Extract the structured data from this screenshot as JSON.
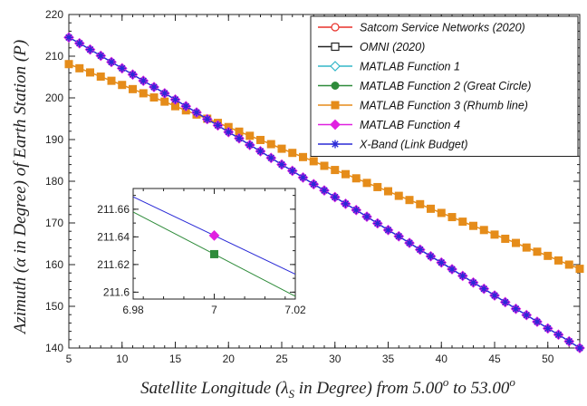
{
  "chart_data": {
    "type": "line",
    "xlabel_parts": [
      "Satellite Longitude (",
      "λ",
      "S",
      " in Degree) from 5.00",
      "o",
      " to 53.00",
      "o"
    ],
    "ylabel": "Azimuth (α in Degree) of Earth Station (P)",
    "xlim": [
      5,
      53
    ],
    "ylim": [
      140,
      220
    ],
    "xticks": [
      5,
      10,
      15,
      20,
      25,
      30,
      35,
      40,
      45,
      50
    ],
    "yticks": [
      140,
      150,
      160,
      170,
      180,
      190,
      200,
      210,
      220
    ],
    "grid": false,
    "legend_position": "top-right",
    "x": [
      5,
      6,
      7,
      8,
      9,
      10,
      11,
      12,
      13,
      14,
      15,
      16,
      17,
      18,
      19,
      20,
      21,
      22,
      23,
      24,
      25,
      26,
      27,
      28,
      29,
      30,
      31,
      32,
      33,
      34,
      35,
      36,
      37,
      38,
      39,
      40,
      41,
      42,
      43,
      44,
      45,
      46,
      47,
      48,
      49,
      50,
      51,
      52,
      53
    ],
    "series": [
      {
        "name": "Satcom Service Networks (2020)",
        "color": "#e8312a",
        "marker": "circle-open",
        "group": "great_circle"
      },
      {
        "name": "OMNI (2020)",
        "color": "#222222",
        "marker": "square-open",
        "group": "great_circle"
      },
      {
        "name": "MATLAB Function 1",
        "color": "#33b7c9",
        "marker": "diamond-open",
        "group": "great_circle"
      },
      {
        "name": "MATLAB Function 2 (Great Circle)",
        "color": "#2e8b3a",
        "marker": "circle-filled",
        "group": "great_circle"
      },
      {
        "name": "MATLAB Function 3 (Rhumb line)",
        "color": "#e58c1a",
        "marker": "square-filled",
        "group": "rhumb",
        "values": [
          208.1,
          207.1,
          206.1,
          205.1,
          204.1,
          203.1,
          202.1,
          201.1,
          200.1,
          199.1,
          198.0,
          197.0,
          196.0,
          195.0,
          194.0,
          193.0,
          191.9,
          190.9,
          189.9,
          188.9,
          187.8,
          186.8,
          185.8,
          184.8,
          183.7,
          182.7,
          181.7,
          180.7,
          179.6,
          178.6,
          177.6,
          176.5,
          175.5,
          174.5,
          173.4,
          172.4,
          171.4,
          170.3,
          169.3,
          168.3,
          167.2,
          166.2,
          165.2,
          164.1,
          163.1,
          162.1,
          161.0,
          160.0,
          159.0
        ]
      },
      {
        "name": "MATLAB Function 4",
        "color": "#e020e0",
        "marker": "diamond-filled",
        "group": "great_circle"
      },
      {
        "name": "X-Band (Link Budget)",
        "color": "#2a2ad6",
        "marker": "asterisk",
        "group": "great_circle",
        "values": [
          214.5,
          213.1,
          211.6,
          210.1,
          208.6,
          207.1,
          205.6,
          204.1,
          202.6,
          201.1,
          199.6,
          198.0,
          196.5,
          194.9,
          193.4,
          191.8,
          190.3,
          188.7,
          187.2,
          185.6,
          184.0,
          182.5,
          180.9,
          179.3,
          177.8,
          176.2,
          174.6,
          173.1,
          171.5,
          169.9,
          168.3,
          166.8,
          165.2,
          163.6,
          162.0,
          160.5,
          158.9,
          157.3,
          155.7,
          154.2,
          152.6,
          151.0,
          149.4,
          147.9,
          146.3,
          144.7,
          143.2,
          141.6,
          140.0
        ]
      }
    ],
    "inset": {
      "xlim": [
        6.98,
        7.02
      ],
      "ylim": [
        211.595,
        211.675
      ],
      "xticks": [
        6.98,
        7,
        7.02
      ],
      "yticks": [
        211.6,
        211.62,
        211.64,
        211.66
      ],
      "lines": [
        {
          "color": "#2a2ad6",
          "start": [
            6.98,
            211.669
          ],
          "end": [
            7.02,
            211.613
          ]
        },
        {
          "color": "#2e8b3a",
          "start": [
            6.98,
            211.658
          ],
          "end": [
            7.02,
            211.597
          ]
        }
      ],
      "points": [
        {
          "x": 7,
          "y": 211.641,
          "marker": "diamond-filled",
          "color": "#e020e0"
        },
        {
          "x": 7,
          "y": 211.6275,
          "marker": "square-filled",
          "color": "#2e8b3a"
        }
      ]
    }
  }
}
